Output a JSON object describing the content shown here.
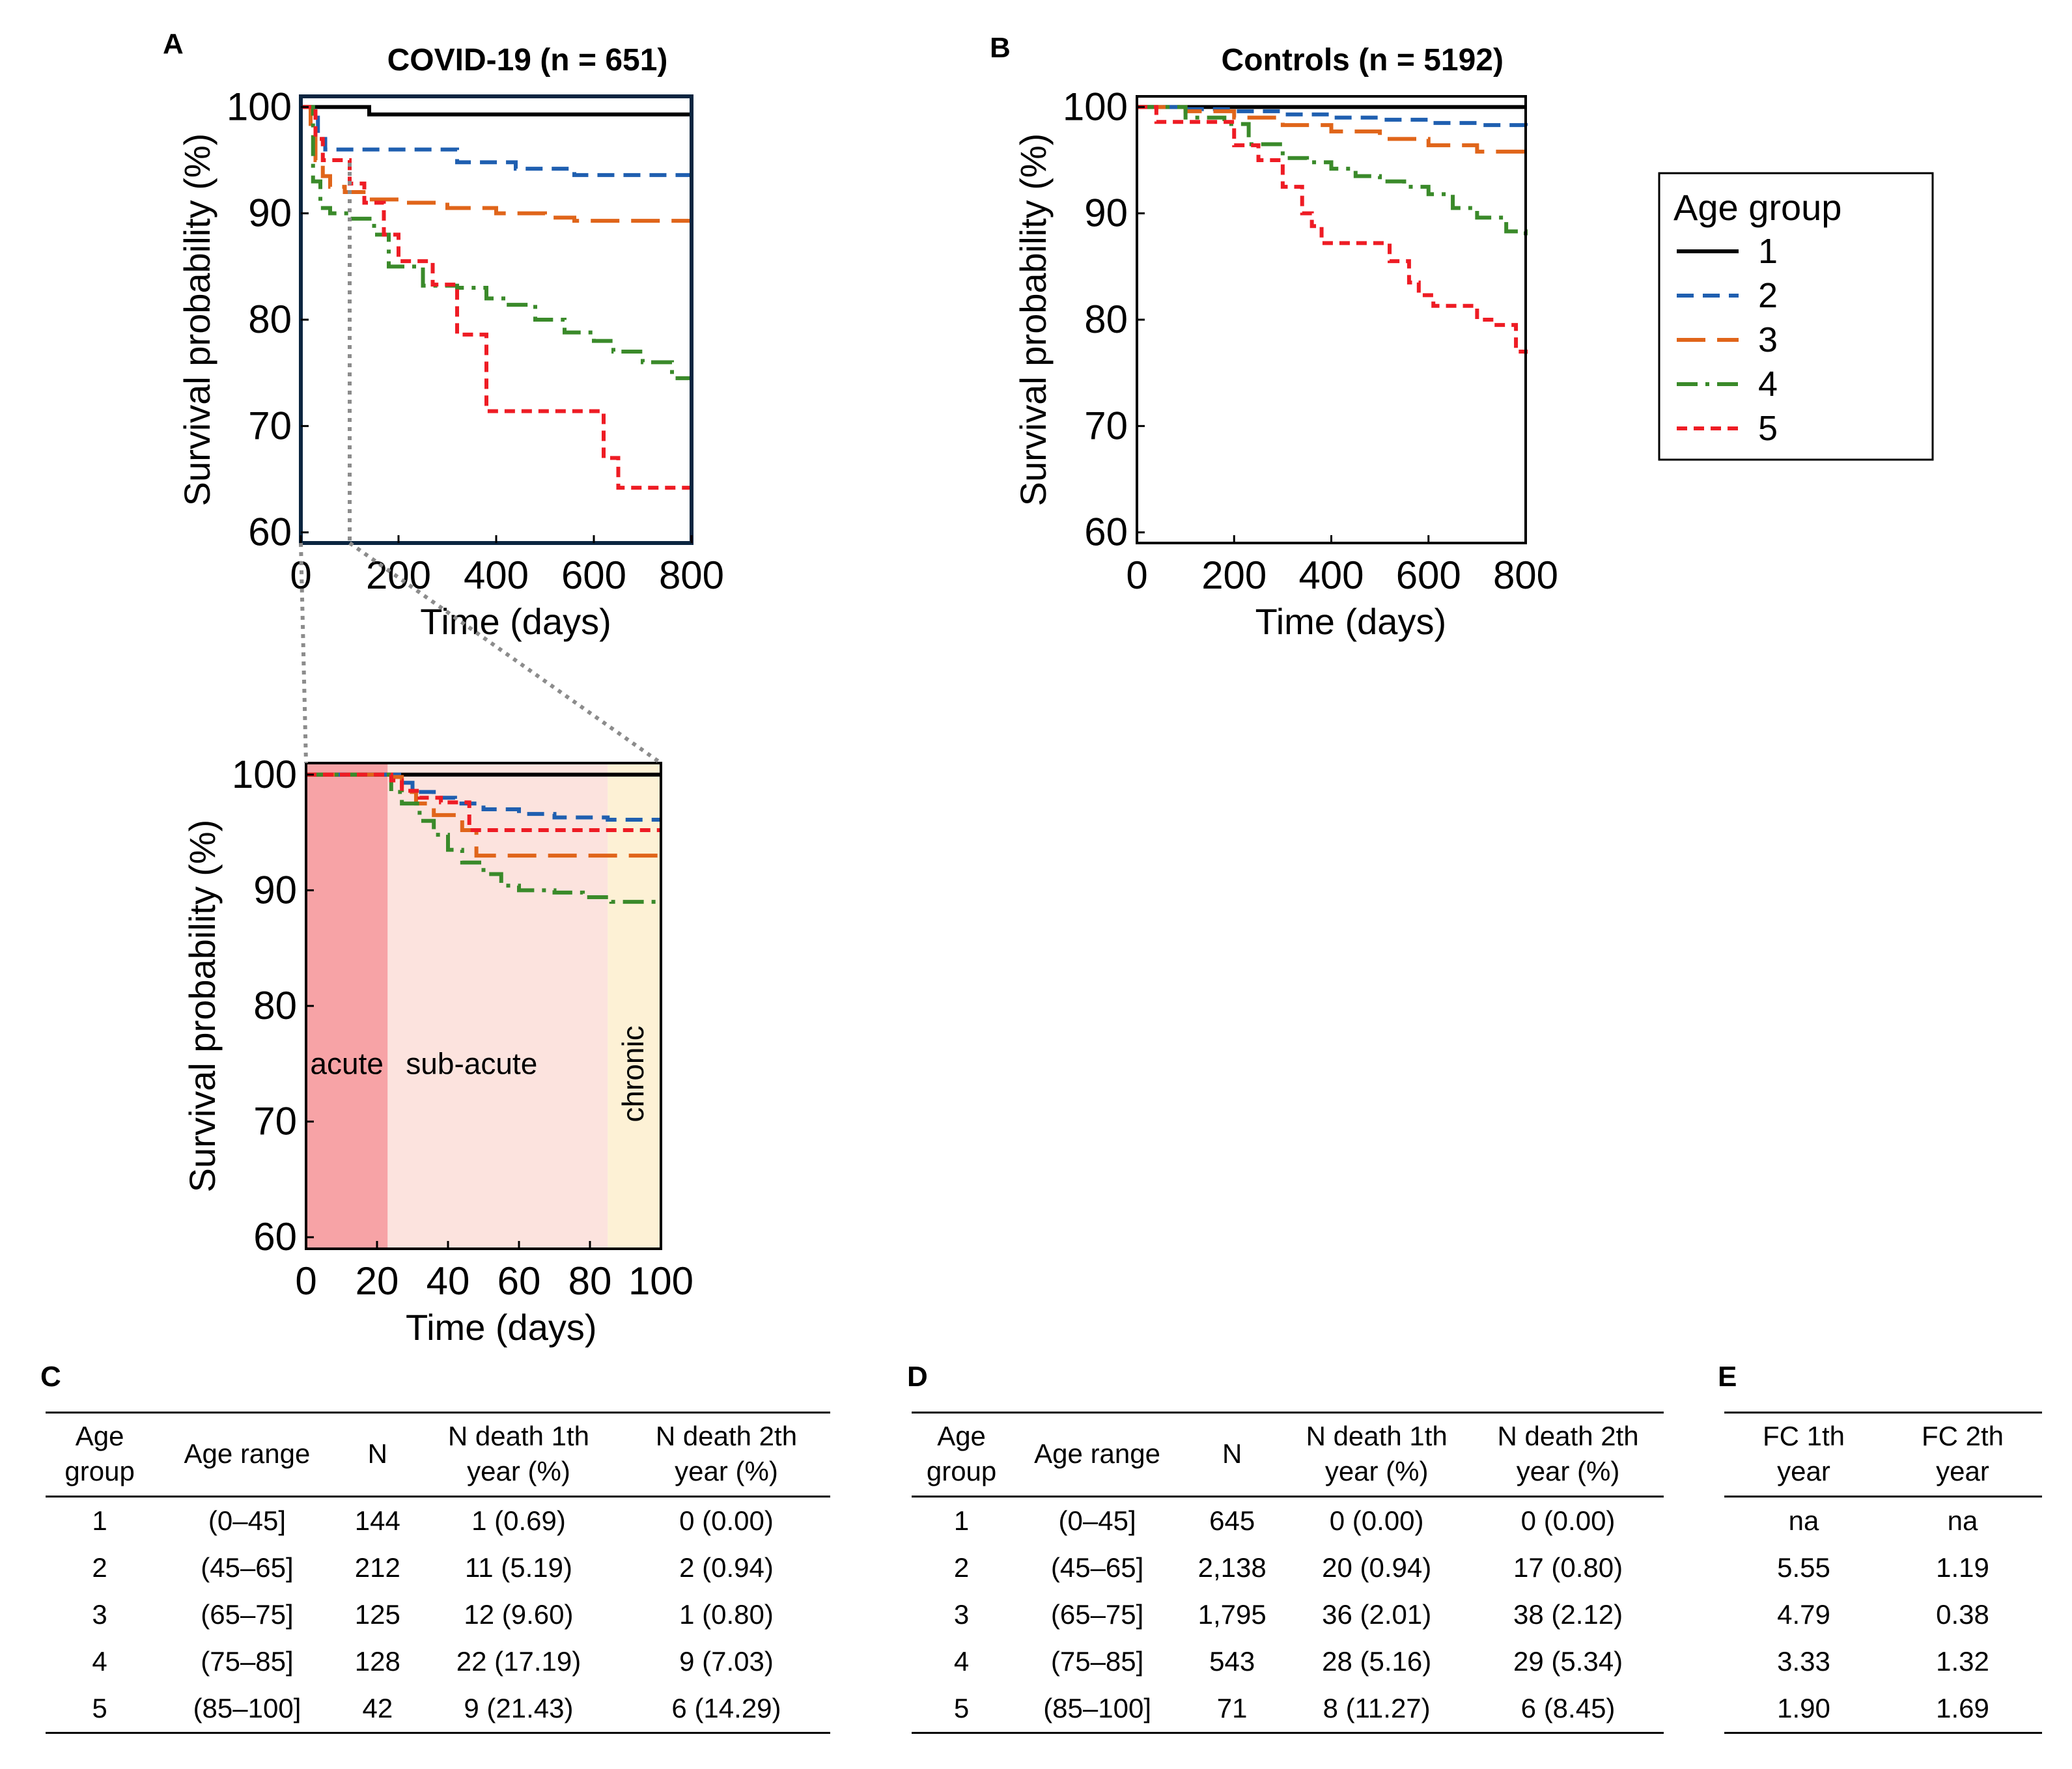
{
  "colors": {
    "g1": "#000000",
    "g2": "#1f5fb0",
    "g3": "#e0651a",
    "g4": "#3a8a2a",
    "g5": "#ee1c24",
    "frameA": "#0b2540",
    "acute": "#f7a3a6",
    "subacute": "#fce3de",
    "chronic": "#fdf1d5",
    "zoomline": "#8c8c8c"
  },
  "chart_data": [
    {
      "panel": "A",
      "type": "line",
      "title": "COVID-19 (n = 651)",
      "xlabel": "Time (days)",
      "ylabel": "Survival probability (%)",
      "xlim": [
        0,
        800
      ],
      "ylim": [
        59,
        101
      ],
      "xticks": [
        "0",
        "200",
        "400",
        "600",
        "800"
      ],
      "yticks": [
        "60",
        "70",
        "80",
        "90",
        "100"
      ],
      "series": [
        {
          "name": "1",
          "x": [
            0,
            140,
            140,
            800
          ],
          "y": [
            100,
            100,
            99.3,
            99.3
          ]
        },
        {
          "name": "2",
          "x": [
            0,
            25,
            35,
            50,
            280,
            320,
            420,
            440,
            520,
            560,
            760,
            800
          ],
          "y": [
            100,
            99,
            97,
            96,
            96,
            94.8,
            94.8,
            94.2,
            94.2,
            93.6,
            93.6,
            92.5
          ]
        },
        {
          "name": "3",
          "x": [
            0,
            20,
            30,
            45,
            60,
            90,
            140,
            200,
            300,
            400,
            500,
            560,
            740,
            800
          ],
          "y": [
            100,
            98,
            95,
            93.5,
            92.5,
            92,
            91.3,
            91,
            90.5,
            90,
            89.6,
            89.3,
            89.3,
            87.2
          ]
        },
        {
          "name": "4",
          "x": [
            0,
            25,
            40,
            60,
            100,
            150,
            180,
            250,
            320,
            380,
            420,
            480,
            540,
            600,
            640,
            700,
            760,
            800
          ],
          "y": [
            100,
            93,
            90.5,
            90,
            89.5,
            88,
            85,
            83.2,
            83,
            82,
            81.4,
            80,
            78.8,
            78,
            77,
            76,
            74.5,
            73.8
          ]
        },
        {
          "name": "5",
          "x": [
            0,
            30,
            45,
            100,
            130,
            170,
            200,
            270,
            320,
            380,
            440,
            600,
            620,
            650,
            800
          ],
          "y": [
            100,
            97,
            95,
            92.8,
            91,
            88,
            85.5,
            83.3,
            78.6,
            71.4,
            71.4,
            71.4,
            67,
            64.2,
            64.2
          ]
        }
      ]
    },
    {
      "panel": "A-inset",
      "type": "line",
      "xlabel": "Time (days)",
      "ylabel": "Survival probability (%)",
      "xlim": [
        0,
        100
      ],
      "ylim": [
        59,
        101
      ],
      "xticks": [
        "0",
        "20",
        "40",
        "60",
        "80",
        "100"
      ],
      "yticks": [
        "60",
        "70",
        "80",
        "90",
        "100"
      ],
      "regions": [
        {
          "label": "acute",
          "from": 0,
          "to": 23
        },
        {
          "label": "sub-acute",
          "from": 23,
          "to": 85
        },
        {
          "label": "chronic",
          "from": 85,
          "to": 100
        }
      ],
      "series": [
        {
          "name": "1",
          "x": [
            0,
            100
          ],
          "y": [
            100,
            100
          ]
        },
        {
          "name": "2",
          "x": [
            0,
            24,
            27,
            30,
            36,
            42,
            50,
            60,
            70,
            85,
            100
          ],
          "y": [
            100,
            100,
            99.3,
            98.5,
            98,
            97.5,
            97,
            96.6,
            96.3,
            96.1,
            96.1
          ]
        },
        {
          "name": "3",
          "x": [
            0,
            24,
            27,
            31,
            36,
            44,
            48,
            60,
            80,
            100
          ],
          "y": [
            100,
            99.8,
            98.5,
            97.5,
            96.5,
            95.2,
            93,
            93,
            93,
            93
          ]
        },
        {
          "name": "4",
          "x": [
            0,
            24,
            27,
            32,
            36,
            40,
            44,
            50,
            55,
            60,
            70,
            78,
            86,
            100
          ],
          "y": [
            100,
            98.5,
            97.5,
            96,
            94.8,
            93.5,
            92.4,
            91.4,
            90.4,
            90,
            89.8,
            89.4,
            89,
            89
          ]
        },
        {
          "name": "5",
          "x": [
            0,
            24,
            27,
            32,
            38,
            46,
            60,
            100
          ],
          "y": [
            100,
            99.5,
            98.6,
            98,
            97.6,
            95.2,
            95.2,
            95.2
          ]
        }
      ]
    },
    {
      "panel": "B",
      "type": "line",
      "title": "Controls (n = 5192)",
      "xlabel": "Time (days)",
      "ylabel": "Survival probability (%)",
      "xlim": [
        0,
        800
      ],
      "ylim": [
        59,
        101
      ],
      "xticks": [
        "0",
        "200",
        "400",
        "600",
        "800"
      ],
      "yticks": [
        "60",
        "70",
        "80",
        "90",
        "100"
      ],
      "series": [
        {
          "name": "1",
          "x": [
            0,
            800
          ],
          "y": [
            100,
            100
          ]
        },
        {
          "name": "2",
          "x": [
            0,
            100,
            200,
            300,
            400,
            500,
            600,
            700,
            800
          ],
          "y": [
            100,
            99.8,
            99.6,
            99.3,
            99,
            98.8,
            98.5,
            98.3,
            98
          ]
        },
        {
          "name": "3",
          "x": [
            0,
            100,
            200,
            300,
            400,
            500,
            600,
            700,
            800
          ],
          "y": [
            100,
            99.6,
            99,
            98.3,
            97.7,
            97,
            96.4,
            95.8,
            94.8
          ]
        },
        {
          "name": "4",
          "x": [
            0,
            100,
            180,
            230,
            300,
            350,
            400,
            450,
            500,
            550,
            600,
            650,
            700,
            760,
            800
          ],
          "y": [
            100,
            99,
            98.4,
            96.5,
            95.2,
            94.8,
            94.2,
            93.5,
            93,
            92.5,
            91.8,
            90.5,
            89.6,
            88.3,
            87.5
          ]
        },
        {
          "name": "5",
          "x": [
            0,
            40,
            80,
            140,
            200,
            250,
            300,
            320,
            340,
            360,
            380,
            440,
            480,
            520,
            560,
            580,
            610,
            660,
            700,
            740,
            780,
            800
          ],
          "y": [
            100,
            98.6,
            98.6,
            98.6,
            96.4,
            95,
            92.5,
            92.5,
            90,
            88.8,
            87.2,
            87.2,
            87.2,
            85.5,
            83.5,
            82.3,
            81.3,
            81.3,
            80,
            79.5,
            77,
            76.8
          ]
        }
      ]
    }
  ],
  "legend": {
    "title": "Age group",
    "items": [
      "1",
      "2",
      "3",
      "4",
      "5"
    ]
  },
  "tables": {
    "C": {
      "letter": "C",
      "headers": [
        "Age\ngroup",
        "Age  range",
        "N",
        "N death 1th\nyear (%)",
        "N death 2th\nyear (%)"
      ],
      "rows": [
        [
          "1",
          "(0–45]",
          "144",
          "1 (0.69)",
          "0 (0.00)"
        ],
        [
          "2",
          "(45–65]",
          "212",
          "11 (5.19)",
          "2 (0.94)"
        ],
        [
          "3",
          "(65–75]",
          "125",
          "12 (9.60)",
          "1 (0.80)"
        ],
        [
          "4",
          "(75–85]",
          "128",
          "22 (17.19)",
          "9 (7.03)"
        ],
        [
          "5",
          "(85–100]",
          "42",
          "9 (21.43)",
          "6 (14.29)"
        ]
      ]
    },
    "D": {
      "letter": "D",
      "headers": [
        "Age\ngroup",
        "Age range",
        "N",
        "N death 1th\nyear (%)",
        "N death 2th\nyear (%)"
      ],
      "rows": [
        [
          "1",
          "(0–45]",
          "645",
          "0 (0.00)",
          "0 (0.00)"
        ],
        [
          "2",
          "(45–65]",
          "2,138",
          "20 (0.94)",
          "17 (0.80)"
        ],
        [
          "3",
          "(65–75]",
          "1,795",
          "36 (2.01)",
          "38 (2.12)"
        ],
        [
          "4",
          "(75–85]",
          "543",
          "28 (5.16)",
          "29 (5.34)"
        ],
        [
          "5",
          "(85–100]",
          "71",
          "8 (11.27)",
          "6 (8.45)"
        ]
      ]
    },
    "E": {
      "letter": "E",
      "headers": [
        "FC 1th\nyear",
        "FC 2th\nyear"
      ],
      "rows": [
        [
          "na",
          "na"
        ],
        [
          "5.55",
          "1.19"
        ],
        [
          "4.79",
          "0.38"
        ],
        [
          "3.33",
          "1.32"
        ],
        [
          "1.90",
          "1.69"
        ]
      ]
    }
  }
}
